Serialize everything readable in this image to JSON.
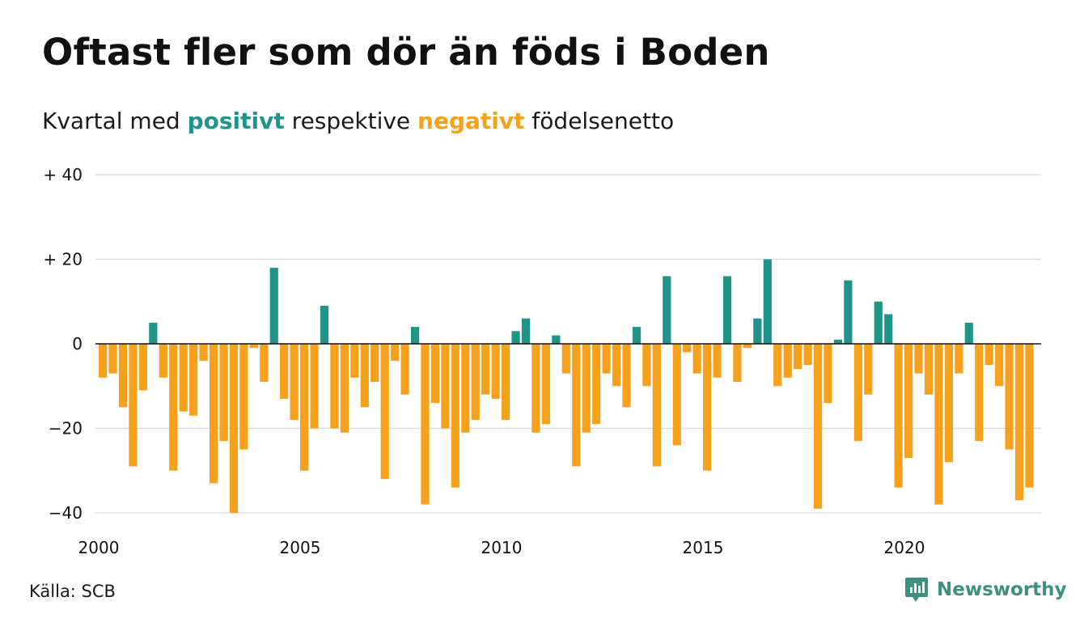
{
  "title": "Oftast fler som dör än föds i Boden",
  "subtitle": {
    "prefix": "Kvartal med ",
    "positive_word": "positivt",
    "middle": " respektive ",
    "negative_word": "negativt",
    "suffix": " födelsenetto"
  },
  "source": "Källa: SCB",
  "brand": "Newsworthy",
  "colors": {
    "positive": "#1f958a",
    "negative": "#f5a11c",
    "grid": "#dddddd",
    "logo": "#3f8f80"
  },
  "chart_data": {
    "type": "bar",
    "x_start": "2000-Q1",
    "frequency": "quarterly",
    "ylim": [
      -40,
      40
    ],
    "yticks": [
      40,
      20,
      0,
      -20,
      -40
    ],
    "ytick_labels": [
      "+ 40",
      "+ 20",
      "0",
      "−20",
      "−40"
    ],
    "xtick_labels": [
      "2000",
      "2005",
      "2010",
      "2015",
      "2020"
    ],
    "grid": true,
    "values": [
      -8,
      -7,
      -15,
      -29,
      -11,
      5,
      -8,
      -30,
      -16,
      -17,
      -4,
      -33,
      -23,
      -40,
      -25,
      -1,
      -9,
      18,
      -13,
      -18,
      -30,
      -20,
      9,
      -20,
      -21,
      -8,
      -15,
      -9,
      -32,
      -4,
      -12,
      4,
      -38,
      -14,
      -20,
      -34,
      -21,
      -18,
      -12,
      -13,
      -18,
      3,
      6,
      -21,
      -19,
      2,
      -7,
      -29,
      -21,
      -19,
      -7,
      -10,
      -15,
      4,
      -10,
      -29,
      16,
      -24,
      -2,
      -7,
      -30,
      -8,
      16,
      -9,
      -1,
      6,
      20,
      -10,
      -8,
      -6,
      -5,
      -39,
      -14,
      1,
      15,
      -23,
      -12,
      10,
      7,
      -34,
      -27,
      -7,
      -12,
      -38,
      -28,
      -7,
      5,
      -23,
      -5,
      -10,
      -25,
      -37,
      -34
    ]
  }
}
